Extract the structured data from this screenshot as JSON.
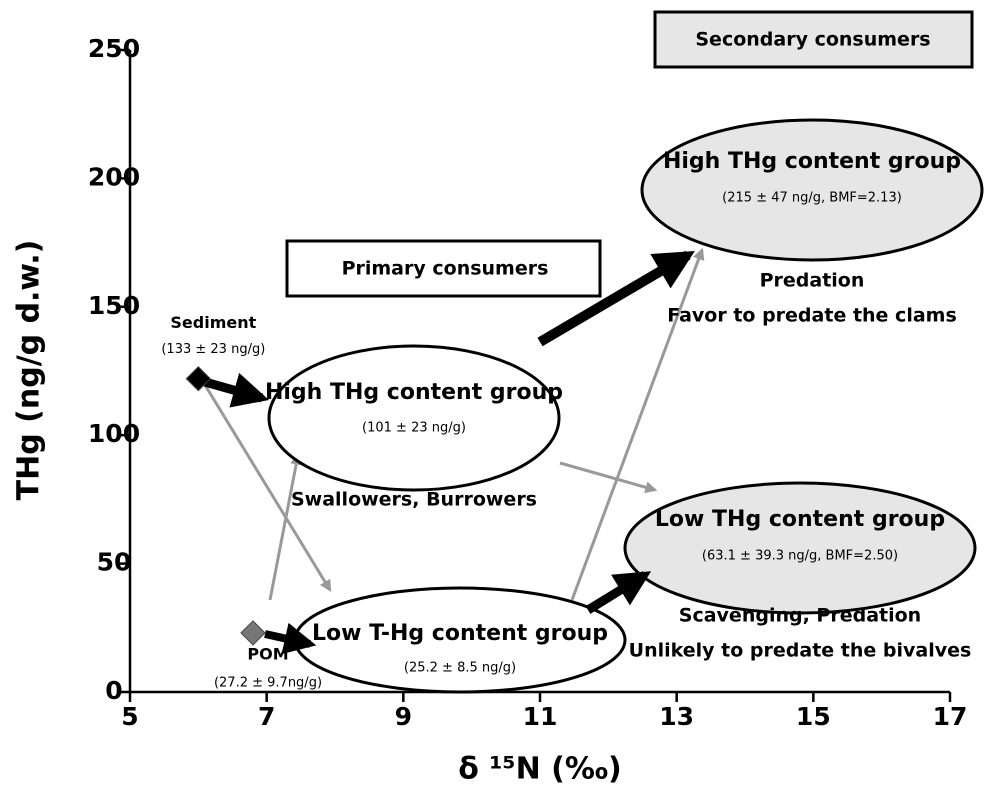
{
  "chart_data": {
    "type": "scatter",
    "xlabel": "δ ¹⁵N (‰)",
    "ylabel": "THg (ng/g d.w.)",
    "xlim": [
      5,
      17
    ],
    "xticks": [
      5,
      7,
      9,
      11,
      13,
      15,
      17
    ],
    "ylim": [
      0,
      250
    ],
    "yticks": [
      0,
      50,
      100,
      150,
      200,
      250
    ],
    "series": [
      {
        "name": "Sediment",
        "detail": "(133 ± 23 ng/g)",
        "color": "#000000",
        "x": [
          6.0
        ],
        "y": [
          122
        ]
      },
      {
        "name": "POM",
        "detail": "(27.2 ± 9.7ng/g)",
        "color": "#777777",
        "x": [
          6.8
        ],
        "y": [
          23
        ]
      }
    ],
    "annotations": {
      "secondary": "Secondary consumers",
      "primary": "Primary consumers",
      "sec_high": {
        "label": "High THg content group",
        "detail": "(215 ± 47 ng/g, BMF=2.13)",
        "notes": [
          "Predation",
          "Favor to predate the clams"
        ]
      },
      "prim_high": {
        "label": "High THg content group",
        "detail": "(101 ± 23 ng/g)",
        "notes": [
          "Swallowers, Burrowers"
        ]
      },
      "sec_low": {
        "label": "Low THg content group",
        "detail": "(63.1 ± 39.3 ng/g, BMF=2.50)",
        "notes": [
          "Scavenging, Predation",
          "Unlikely to predate the bivalves"
        ]
      },
      "prim_low": {
        "label": "Low T-Hg content group",
        "detail": "(25.2 ± 8.5 ng/g)"
      }
    }
  }
}
